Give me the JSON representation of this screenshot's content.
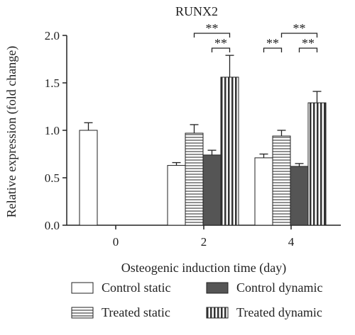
{
  "chart_data": {
    "type": "bar",
    "title": "RUNX2",
    "xlabel": "Osteogenic induction time (day)",
    "ylabel": "Relative expression (fold change)",
    "ylim": [
      0,
      2.0
    ],
    "yticks": [
      "0.0",
      "0.5",
      "1.0",
      "1.5",
      "2.0"
    ],
    "categories": [
      "0",
      "2",
      "4"
    ],
    "series": [
      {
        "name": "Control static",
        "pattern": "open",
        "values": [
          1.0,
          0.63,
          0.71
        ],
        "errors": [
          0.08,
          0.03,
          0.04
        ]
      },
      {
        "name": "Treated static",
        "pattern": "horizontal-lines",
        "values": [
          null,
          0.97,
          0.94
        ],
        "errors": [
          null,
          0.09,
          0.06
        ]
      },
      {
        "name": "Control dynamic",
        "pattern": "solid-dark",
        "values": [
          null,
          0.74,
          0.62
        ],
        "errors": [
          null,
          0.05,
          0.03
        ]
      },
      {
        "name": "Treated dynamic",
        "pattern": "vertical-lines",
        "values": [
          null,
          1.56,
          1.29
        ],
        "errors": [
          null,
          0.23,
          0.12
        ]
      }
    ],
    "significance": [
      {
        "category": "2",
        "from": "Treated static",
        "to": "Treated dynamic",
        "label": "**"
      },
      {
        "category": "2",
        "from": "Control dynamic",
        "to": "Treated dynamic",
        "label": "**"
      },
      {
        "category": "4",
        "from": "Control static",
        "to": "Treated static",
        "label": "**"
      },
      {
        "category": "4",
        "from": "Treated static",
        "to": "Treated dynamic",
        "label": "**"
      },
      {
        "category": "4",
        "from": "Control dynamic",
        "to": "Treated dynamic",
        "label": "**"
      }
    ],
    "legend": "bottom",
    "grid": false
  },
  "colors": {
    "axis": "#222222",
    "dark_fill": "#555555",
    "stroke": "#222222"
  }
}
